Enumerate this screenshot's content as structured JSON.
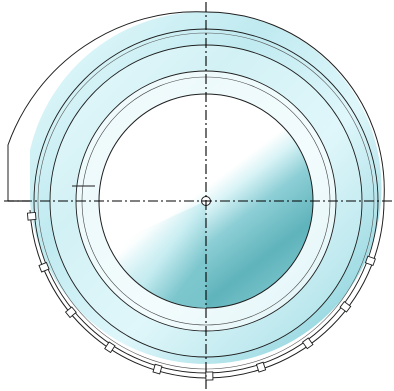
{
  "drawing": {
    "colors": {
      "cyan_light": "#dff7fb",
      "cyan_mid": "#b4e8ee",
      "cyan_deep": "#8dd3dc",
      "disc_dark": "#63b8bf",
      "outline": "#1f1f1f",
      "centerline": "#000000"
    },
    "notch_count": 10,
    "icons": {
      "center_hole": "small-circle-hole"
    }
  }
}
